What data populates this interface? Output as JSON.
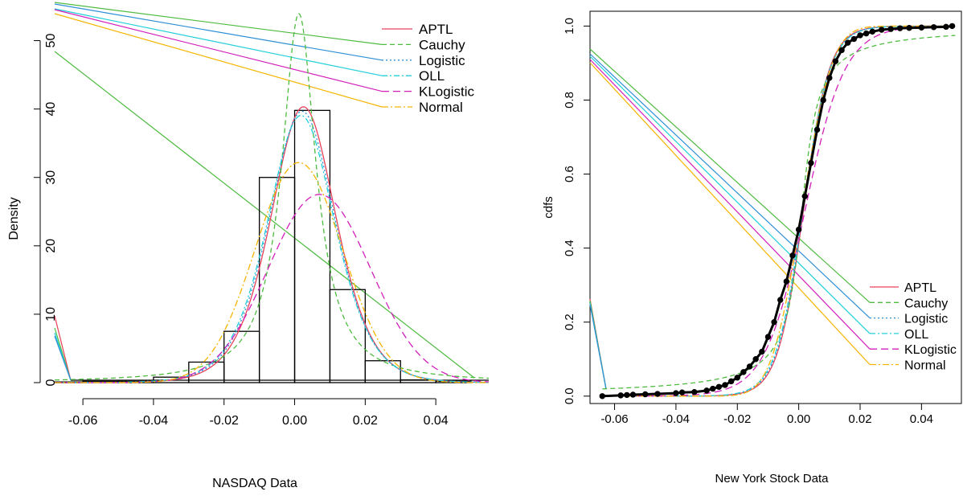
{
  "chart_data": [
    {
      "type": "histogram-density",
      "title": "",
      "xlabel": "NASDAQ Data",
      "ylabel": "Density",
      "xlim": [
        -0.068,
        0.055
      ],
      "ylim": [
        0,
        55
      ],
      "x_ticks": [
        {
          "value": -0.06,
          "label": "-0.06"
        },
        {
          "value": -0.04,
          "label": "-0.04"
        },
        {
          "value": -0.02,
          "label": "-0.02"
        },
        {
          "value": 0.0,
          "label": "0.00"
        },
        {
          "value": 0.02,
          "label": "0.02"
        },
        {
          "value": 0.04,
          "label": "0.04"
        }
      ],
      "y_ticks": [
        {
          "value": 0,
          "label": "0"
        },
        {
          "value": 10,
          "label": "10"
        },
        {
          "value": 20,
          "label": "20"
        },
        {
          "value": 30,
          "label": "30"
        },
        {
          "value": 40,
          "label": "40"
        },
        {
          "value": 50,
          "label": "50"
        }
      ],
      "histogram": {
        "breaks": [
          -0.07,
          -0.06,
          -0.05,
          -0.04,
          -0.03,
          -0.02,
          -0.01,
          0.0,
          0.01,
          0.02,
          0.03,
          0.04,
          0.05
        ],
        "density": [
          0.1,
          0.2,
          0.2,
          0.8,
          3.0,
          7.5,
          30.0,
          39.8,
          13.6,
          3.2,
          0.4,
          0.2
        ]
      },
      "series": [
        {
          "name": "APTL",
          "dist": "logistic",
          "loc": 0.0025,
          "scale": 0.0062
        },
        {
          "name": "Cauchy",
          "dist": "cauchy",
          "loc": 0.0012,
          "scale": 0.0059
        },
        {
          "name": "Logistic",
          "dist": "logistic",
          "loc": 0.0021,
          "scale": 0.0063
        },
        {
          "name": "OLL",
          "dist": "logistic",
          "loc": 0.0018,
          "scale": 0.0064
        },
        {
          "name": "KLogistic",
          "dist": "normal",
          "loc": 0.007,
          "scale": 0.0145
        },
        {
          "name": "Normal",
          "dist": "normal",
          "loc": 0.0012,
          "scale": 0.0124
        }
      ],
      "legend_position": "top-right"
    },
    {
      "type": "line",
      "title": "",
      "xlabel": "New York Stock Data",
      "ylabel": "cdfs",
      "xlim": [
        -0.068,
        0.053
      ],
      "ylim": [
        -0.02,
        1.04
      ],
      "x_ticks": [
        {
          "value": -0.06,
          "label": "-0.06"
        },
        {
          "value": -0.04,
          "label": "-0.04"
        },
        {
          "value": -0.02,
          "label": "-0.02"
        },
        {
          "value": 0.0,
          "label": "0.00"
        },
        {
          "value": 0.02,
          "label": "0.02"
        },
        {
          "value": 0.04,
          "label": "0.04"
        }
      ],
      "y_ticks": [
        {
          "value": 0.0,
          "label": "0.0"
        },
        {
          "value": 0.2,
          "label": "0.2"
        },
        {
          "value": 0.4,
          "label": "0.4"
        },
        {
          "value": 0.6,
          "label": "0.6"
        },
        {
          "value": 0.8,
          "label": "0.8"
        },
        {
          "value": 1.0,
          "label": "1.0"
        }
      ],
      "ecdf_points": [
        {
          "x": -0.064,
          "y": 0.0
        },
        {
          "x": -0.058,
          "y": 0.002
        },
        {
          "x": -0.056,
          "y": 0.003
        },
        {
          "x": -0.054,
          "y": 0.004
        },
        {
          "x": -0.05,
          "y": 0.005
        },
        {
          "x": -0.046,
          "y": 0.006
        },
        {
          "x": -0.04,
          "y": 0.008
        },
        {
          "x": -0.038,
          "y": 0.01
        },
        {
          "x": -0.034,
          "y": 0.011
        },
        {
          "x": -0.03,
          "y": 0.015
        },
        {
          "x": -0.028,
          "y": 0.02
        },
        {
          "x": -0.026,
          "y": 0.025
        },
        {
          "x": -0.024,
          "y": 0.03
        },
        {
          "x": -0.022,
          "y": 0.04
        },
        {
          "x": -0.02,
          "y": 0.05
        },
        {
          "x": -0.018,
          "y": 0.065
        },
        {
          "x": -0.016,
          "y": 0.08
        },
        {
          "x": -0.014,
          "y": 0.1
        },
        {
          "x": -0.012,
          "y": 0.12
        },
        {
          "x": -0.01,
          "y": 0.16
        },
        {
          "x": -0.008,
          "y": 0.2
        },
        {
          "x": -0.006,
          "y": 0.26
        },
        {
          "x": -0.004,
          "y": 0.31
        },
        {
          "x": -0.002,
          "y": 0.38
        },
        {
          "x": 0.0,
          "y": 0.45
        },
        {
          "x": 0.002,
          "y": 0.54
        },
        {
          "x": 0.004,
          "y": 0.63
        },
        {
          "x": 0.006,
          "y": 0.72
        },
        {
          "x": 0.008,
          "y": 0.8
        },
        {
          "x": 0.01,
          "y": 0.86
        },
        {
          "x": 0.012,
          "y": 0.905
        },
        {
          "x": 0.014,
          "y": 0.935
        },
        {
          "x": 0.016,
          "y": 0.955
        },
        {
          "x": 0.018,
          "y": 0.965
        },
        {
          "x": 0.02,
          "y": 0.975
        },
        {
          "x": 0.022,
          "y": 0.98
        },
        {
          "x": 0.024,
          "y": 0.985
        },
        {
          "x": 0.027,
          "y": 0.99
        },
        {
          "x": 0.03,
          "y": 0.992
        },
        {
          "x": 0.033,
          "y": 0.994
        },
        {
          "x": 0.036,
          "y": 0.995
        },
        {
          "x": 0.04,
          "y": 0.996
        },
        {
          "x": 0.044,
          "y": 0.997
        },
        {
          "x": 0.048,
          "y": 0.998
        },
        {
          "x": 0.05,
          "y": 1.0
        }
      ],
      "series": [
        {
          "name": "APTL",
          "dist": "logistic",
          "loc": 0.0015,
          "scale": 0.0042
        },
        {
          "name": "Cauchy",
          "dist": "cauchy",
          "loc": 0.001,
          "scale": 0.004
        },
        {
          "name": "Logistic",
          "dist": "logistic",
          "loc": 0.0014,
          "scale": 0.0043
        },
        {
          "name": "OLL",
          "dist": "logistic",
          "loc": 0.0013,
          "scale": 0.0044
        },
        {
          "name": "KLogistic",
          "dist": "logistic",
          "loc": 0.002,
          "scale": 0.0065
        },
        {
          "name": "Normal",
          "dist": "normal",
          "loc": 0.001,
          "scale": 0.0078
        }
      ],
      "legend_position": "bottom-right"
    }
  ],
  "legend_styles": [
    {
      "name": "APTL",
      "color": "#e8415a",
      "dash": ""
    },
    {
      "name": "Cauchy",
      "color": "#4dbb3f",
      "dash": "6,4"
    },
    {
      "name": "Logistic",
      "color": "#2d8fd6",
      "dash": "2,3"
    },
    {
      "name": "OLL",
      "color": "#20cfd8",
      "dash": "7,3,2,3"
    },
    {
      "name": "KLogistic",
      "color": "#d41fbd",
      "dash": "9,5"
    },
    {
      "name": "Normal",
      "color": "#f5b400",
      "dash": "8,3,2,3"
    }
  ]
}
